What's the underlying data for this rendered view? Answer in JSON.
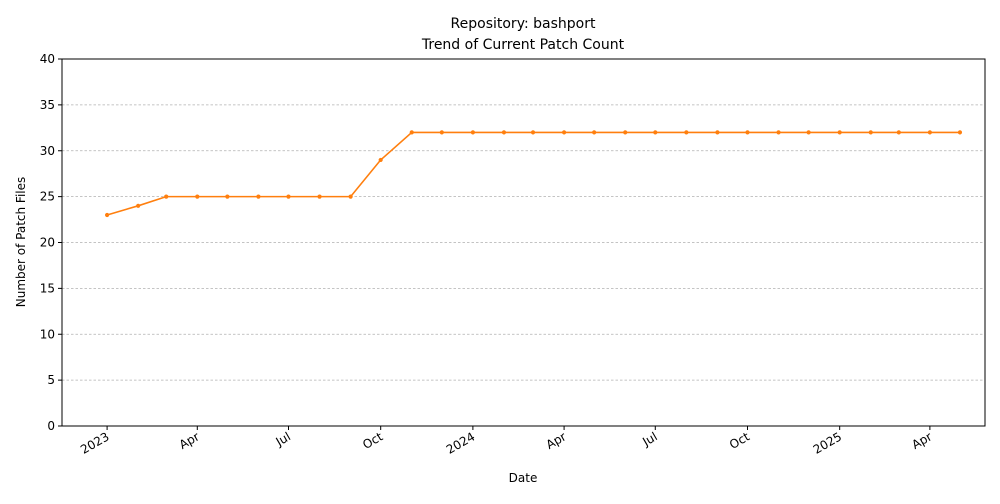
{
  "chart_data": {
    "type": "line",
    "title": "Repository: bashport",
    "subtitle": "Trend of Current Patch Count",
    "xlabel": "Date",
    "ylabel": "Number of Patch Files",
    "ylim": [
      0,
      40
    ],
    "yticks": [
      0,
      5,
      10,
      15,
      20,
      25,
      30,
      35,
      40
    ],
    "xlim": [
      "2022-11-17",
      "2025-05-26"
    ],
    "xticks": [
      {
        "date": "2023-01-01",
        "label": "2023"
      },
      {
        "date": "2023-04-01",
        "label": "Apr"
      },
      {
        "date": "2023-07-01",
        "label": "Jul"
      },
      {
        "date": "2023-10-01",
        "label": "Oct"
      },
      {
        "date": "2024-01-01",
        "label": "2024"
      },
      {
        "date": "2024-04-01",
        "label": "Apr"
      },
      {
        "date": "2024-07-01",
        "label": "Jul"
      },
      {
        "date": "2024-10-01",
        "label": "Oct"
      },
      {
        "date": "2025-01-01",
        "label": "2025"
      },
      {
        "date": "2025-04-01",
        "label": "Apr"
      }
    ],
    "grid": "y",
    "color": "#ff7f0e",
    "x": [
      "2023-01-01",
      "2023-02-01",
      "2023-03-01",
      "2023-04-01",
      "2023-05-01",
      "2023-06-01",
      "2023-07-01",
      "2023-08-01",
      "2023-09-01",
      "2023-10-01",
      "2023-11-01",
      "2023-12-01",
      "2024-01-01",
      "2024-02-01",
      "2024-03-01",
      "2024-04-01",
      "2024-05-01",
      "2024-06-01",
      "2024-07-01",
      "2024-08-01",
      "2024-09-01",
      "2024-10-01",
      "2024-11-01",
      "2024-12-01",
      "2025-01-01",
      "2025-02-01",
      "2025-03-01",
      "2025-04-01",
      "2025-05-01"
    ],
    "series": [
      {
        "values": [
          23,
          24,
          25,
          25,
          25,
          25,
          25,
          25,
          25,
          29,
          32,
          32,
          32,
          32,
          32,
          32,
          32,
          32,
          32,
          32,
          32,
          32,
          32,
          32,
          32,
          32,
          32,
          32,
          32
        ]
      }
    ]
  }
}
